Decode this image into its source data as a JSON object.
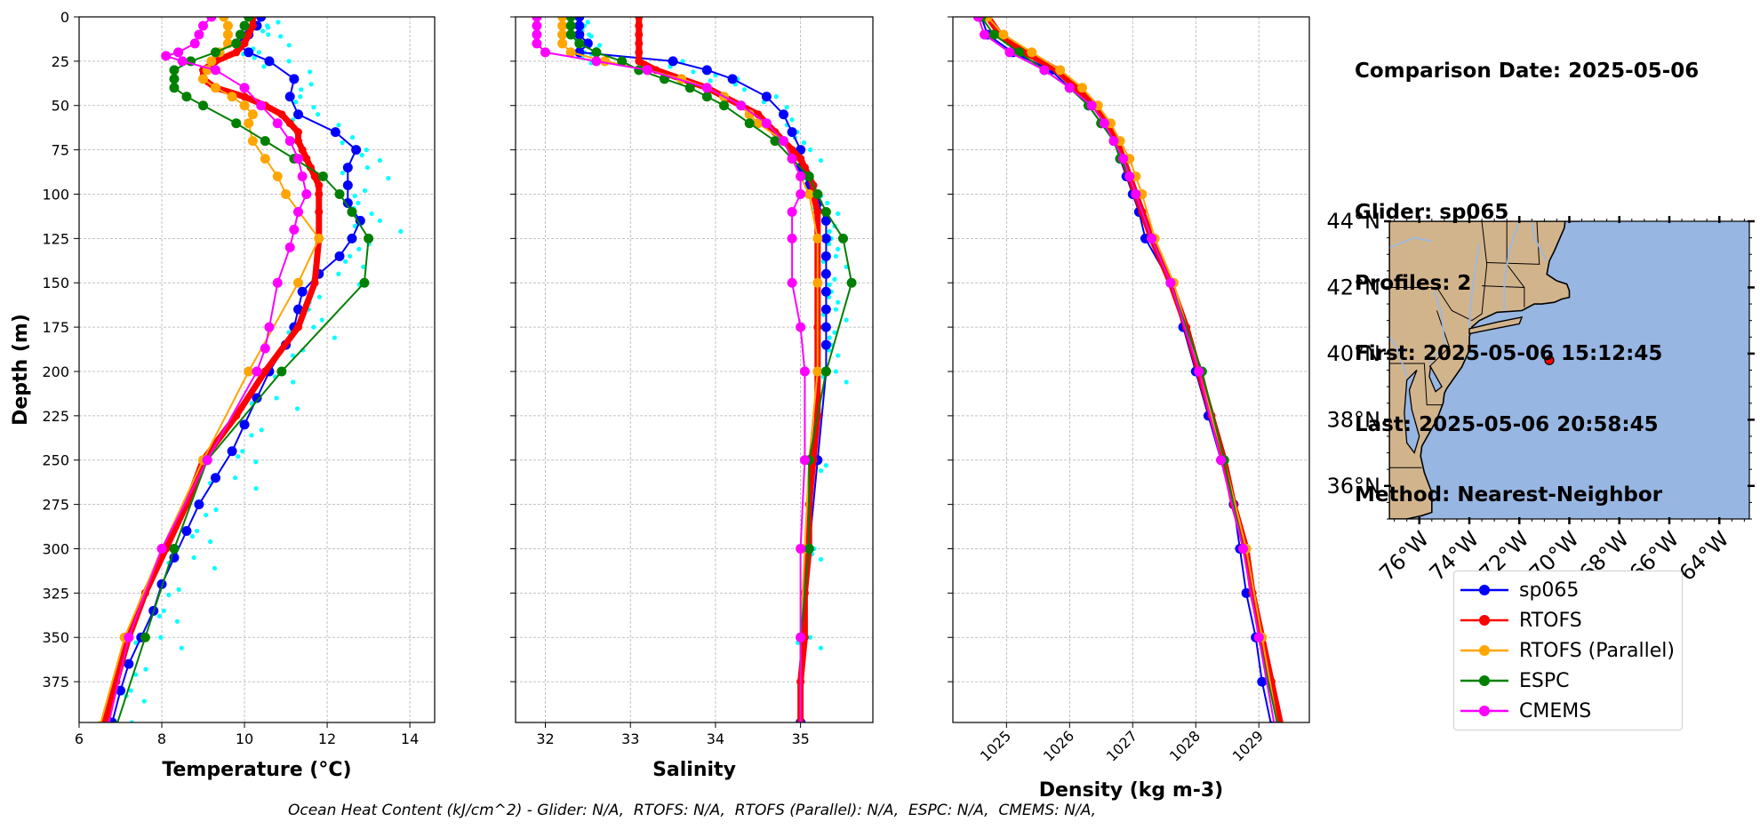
{
  "info": {
    "comparison_date": "Comparison Date: 2025-05-06",
    "glider": "Glider: sp065",
    "profiles": "Profiles: 2",
    "first": "First: 2025-05-06 15:12:45",
    "last": "Last: 2025-05-06 20:58:45",
    "method": "Method: Nearest-Neighbor"
  },
  "footnote": "Ocean Heat Content (kJ/cm^2) - Glider: N/A,  RTOFS: N/A,  RTOFS (Parallel): N/A,  ESPC: N/A,  CMEMS: N/A,",
  "colors": {
    "sp065": "#0000ff",
    "RTOFS": "#ff0000",
    "RTOFS (Parallel)": "#ffa500",
    "ESPC": "#008000",
    "CMEMS": "#ff00ff",
    "raw": "#00ffff",
    "land": "#d2b48c",
    "ocean": "#98b6e2",
    "rivers": "#9fb9d9"
  },
  "legend": [
    "sp065",
    "RTOFS",
    "RTOFS (Parallel)",
    "ESPC",
    "CMEMS"
  ],
  "chart_data": [
    {
      "type": "line",
      "xlabel": "Temperature (°C)",
      "ylabel": "Depth (m)",
      "xlim": [
        6,
        14.6
      ],
      "ylim": [
        398,
        0
      ],
      "xticks": [
        6,
        8,
        10,
        12,
        14
      ],
      "yticks": [
        0,
        25,
        50,
        75,
        100,
        125,
        150,
        175,
        200,
        225,
        250,
        275,
        300,
        325,
        350,
        375
      ],
      "grid": true,
      "depths": [
        0,
        5,
        10,
        15,
        20,
        25,
        30,
        35,
        40,
        45,
        50,
        55,
        60,
        65,
        70,
        75,
        80,
        85,
        90,
        95,
        100,
        110,
        125,
        150,
        175,
        200,
        225,
        250,
        275,
        300,
        325,
        350,
        375,
        400
      ],
      "series": [
        {
          "name": "sp065",
          "depth": [
            0,
            5,
            10,
            15,
            20,
            25,
            35,
            45,
            55,
            65,
            75,
            85,
            95,
            105,
            115,
            125,
            135,
            145,
            155,
            165,
            175,
            185,
            200,
            215,
            230,
            245,
            260,
            275,
            290,
            305,
            320,
            335,
            350,
            365,
            380,
            398
          ],
          "values": [
            10.4,
            10.3,
            10.1,
            9.8,
            10.1,
            10.6,
            11.2,
            11.1,
            11.3,
            12.2,
            12.7,
            12.5,
            12.5,
            12.5,
            12.8,
            12.6,
            12.3,
            11.8,
            11.4,
            11.3,
            11.2,
            11.0,
            10.6,
            10.3,
            10.0,
            9.7,
            9.3,
            8.9,
            8.6,
            8.3,
            8.0,
            7.8,
            7.5,
            7.2,
            7.0,
            6.8
          ]
        },
        {
          "name": "RTOFS",
          "depth": [
            0,
            5,
            10,
            15,
            20,
            25,
            30,
            35,
            40,
            45,
            50,
            55,
            60,
            65,
            70,
            75,
            80,
            85,
            90,
            95,
            100,
            110,
            125,
            150,
            175,
            200,
            225,
            250,
            275,
            300,
            325,
            350,
            375,
            400
          ],
          "values": [
            10.2,
            10.2,
            10.1,
            10.0,
            9.8,
            9.3,
            9.0,
            9.0,
            9.3,
            10.0,
            10.5,
            10.9,
            11.1,
            11.3,
            11.3,
            11.4,
            11.5,
            11.6,
            11.7,
            11.8,
            11.8,
            11.8,
            11.8,
            11.7,
            11.3,
            10.5,
            9.8,
            9.0,
            8.6,
            8.1,
            7.6,
            7.2,
            6.9,
            6.6
          ]
        },
        {
          "name": "RTOFS (Parallel)",
          "depth": [
            0,
            5,
            10,
            15,
            20,
            25,
            30,
            35,
            40,
            45,
            50,
            55,
            60,
            70,
            80,
            90,
            100,
            125,
            150,
            200,
            250,
            300,
            350,
            400
          ],
          "values": [
            9.5,
            9.6,
            9.6,
            9.6,
            9.4,
            9.2,
            9.1,
            9.0,
            9.3,
            9.7,
            10.0,
            10.2,
            10.1,
            10.2,
            10.5,
            10.8,
            11.0,
            11.8,
            11.3,
            10.1,
            9.0,
            8.0,
            7.1,
            6.5
          ]
        },
        {
          "name": "ESPC",
          "depth": [
            0,
            5,
            10,
            15,
            20,
            25,
            30,
            35,
            40,
            45,
            50,
            60,
            70,
            80,
            90,
            100,
            110,
            125,
            150,
            200,
            250,
            300,
            350,
            400
          ],
          "values": [
            10.1,
            10.0,
            9.9,
            9.8,
            9.3,
            8.7,
            8.3,
            8.3,
            8.3,
            8.6,
            9.0,
            9.8,
            10.5,
            11.2,
            11.9,
            12.3,
            12.6,
            13.0,
            12.9,
            10.9,
            9.1,
            8.3,
            7.6,
            6.9
          ]
        },
        {
          "name": "CMEMS",
          "depth": [
            0,
            5,
            10,
            15,
            20,
            22,
            25,
            30,
            40,
            50,
            60,
            70,
            80,
            90,
            100,
            110,
            120,
            130,
            150,
            175,
            187,
            200,
            250,
            300,
            350,
            400
          ],
          "values": [
            9.2,
            9.0,
            8.9,
            8.8,
            8.4,
            8.1,
            8.5,
            9.3,
            10.0,
            10.4,
            10.8,
            11.1,
            11.3,
            11.4,
            11.5,
            11.3,
            11.2,
            11.1,
            10.8,
            10.6,
            10.5,
            10.3,
            9.1,
            8.0,
            7.2,
            6.7
          ]
        }
      ]
    },
    {
      "type": "line",
      "xlabel": "Salinity",
      "ylabel": "",
      "xlim": [
        31.65,
        35.85
      ],
      "ylim": [
        398,
        0
      ],
      "xticks": [
        32,
        33,
        34,
        35
      ],
      "grid": true,
      "series": [
        {
          "name": "sp065",
          "depth": [
            0,
            5,
            10,
            15,
            20,
            25,
            30,
            35,
            45,
            55,
            65,
            75,
            85,
            95,
            105,
            115,
            125,
            135,
            145,
            155,
            165,
            175,
            185,
            200,
            250,
            300,
            350,
            398
          ],
          "values": [
            32.4,
            32.4,
            32.4,
            32.5,
            32.4,
            33.5,
            33.9,
            34.2,
            34.6,
            34.8,
            34.9,
            35.0,
            35.0,
            35.1,
            35.2,
            35.3,
            35.3,
            35.3,
            35.3,
            35.3,
            35.3,
            35.3,
            35.3,
            35.3,
            35.2,
            35.1,
            35.0,
            35.0
          ]
        },
        {
          "name": "RTOFS",
          "depth": [
            0,
            5,
            10,
            15,
            20,
            25,
            30,
            35,
            40,
            45,
            50,
            55,
            60,
            65,
            70,
            75,
            80,
            85,
            90,
            95,
            100,
            110,
            125,
            150,
            175,
            200,
            225,
            250,
            275,
            300,
            325,
            350,
            375,
            400
          ],
          "values": [
            33.1,
            33.1,
            33.1,
            33.1,
            33.1,
            33.1,
            33.3,
            33.6,
            33.9,
            34.1,
            34.3,
            34.5,
            34.6,
            34.7,
            34.8,
            34.9,
            35.0,
            35.05,
            35.1,
            35.15,
            35.15,
            35.2,
            35.2,
            35.2,
            35.2,
            35.2,
            35.2,
            35.15,
            35.1,
            35.1,
            35.05,
            35.05,
            35.0,
            35.0
          ]
        },
        {
          "name": "RTOFS (Parallel)",
          "depth": [
            0,
            5,
            10,
            15,
            20,
            25,
            30,
            35,
            40,
            45,
            50,
            55,
            60,
            70,
            80,
            90,
            100,
            125,
            150,
            200,
            250,
            300,
            350,
            400
          ],
          "values": [
            32.2,
            32.2,
            32.2,
            32.2,
            32.3,
            32.7,
            33.2,
            33.6,
            33.9,
            34.1,
            34.3,
            34.4,
            34.5,
            34.8,
            34.9,
            35.0,
            35.1,
            35.2,
            35.2,
            35.2,
            35.1,
            35.05,
            35.0,
            35.0
          ]
        },
        {
          "name": "ESPC",
          "depth": [
            0,
            5,
            10,
            15,
            20,
            25,
            30,
            35,
            40,
            45,
            50,
            60,
            70,
            80,
            90,
            100,
            110,
            125,
            150,
            200,
            250,
            300,
            350,
            400
          ],
          "values": [
            32.3,
            32.3,
            32.3,
            32.4,
            32.6,
            32.9,
            33.1,
            33.4,
            33.7,
            33.9,
            34.1,
            34.4,
            34.7,
            34.9,
            35.1,
            35.2,
            35.3,
            35.5,
            35.6,
            35.3,
            35.1,
            35.1,
            35.0,
            35.0
          ]
        },
        {
          "name": "CMEMS",
          "depth": [
            0,
            5,
            10,
            15,
            20,
            25,
            30,
            40,
            50,
            60,
            70,
            80,
            90,
            100,
            110,
            125,
            150,
            175,
            200,
            250,
            300,
            350,
            400
          ],
          "values": [
            31.9,
            31.9,
            31.9,
            31.9,
            32.0,
            32.6,
            33.2,
            33.9,
            34.3,
            34.6,
            34.8,
            34.9,
            35.0,
            35.0,
            34.9,
            34.9,
            34.9,
            35.0,
            35.05,
            35.05,
            35.0,
            35.0,
            35.0
          ]
        }
      ]
    },
    {
      "type": "line",
      "xlabel": "Density (kg m-3)",
      "ylabel": "",
      "xlim": [
        1024.15,
        1029.8
      ],
      "ylim": [
        398,
        0
      ],
      "xticks": [
        1025,
        1026,
        1027,
        1028,
        1029
      ],
      "grid": true,
      "series": [
        {
          "name": "sp065",
          "depth": [
            0,
            10,
            20,
            30,
            40,
            50,
            60,
            70,
            80,
            90,
            100,
            110,
            125,
            150,
            175,
            200,
            225,
            250,
            275,
            300,
            325,
            350,
            375,
            400
          ],
          "values": [
            1024.6,
            1024.7,
            1025.1,
            1025.7,
            1026.0,
            1026.3,
            1026.5,
            1026.7,
            1026.8,
            1026.9,
            1027.0,
            1027.1,
            1027.2,
            1027.6,
            1027.8,
            1028.0,
            1028.2,
            1028.4,
            1028.6,
            1028.7,
            1028.8,
            1028.95,
            1029.05,
            1029.2
          ]
        },
        {
          "name": "RTOFS",
          "depth": [
            0,
            10,
            20,
            30,
            40,
            50,
            60,
            70,
            80,
            90,
            100,
            110,
            125,
            150,
            175,
            200,
            225,
            250,
            275,
            300,
            325,
            350,
            375,
            400
          ],
          "values": [
            1024.7,
            1024.9,
            1025.3,
            1025.8,
            1026.1,
            1026.4,
            1026.6,
            1026.75,
            1026.85,
            1026.95,
            1027.05,
            1027.15,
            1027.3,
            1027.6,
            1027.85,
            1028.05,
            1028.25,
            1028.45,
            1028.6,
            1028.8,
            1028.9,
            1029.05,
            1029.2,
            1029.35
          ]
        },
        {
          "name": "RTOFS (Parallel)",
          "depth": [
            0,
            10,
            20,
            30,
            40,
            50,
            60,
            70,
            80,
            90,
            100,
            125,
            150,
            200,
            250,
            300,
            350,
            400
          ],
          "values": [
            1024.7,
            1024.95,
            1025.4,
            1025.85,
            1026.2,
            1026.45,
            1026.65,
            1026.8,
            1026.95,
            1027.05,
            1027.15,
            1027.35,
            1027.65,
            1028.05,
            1028.45,
            1028.8,
            1029.05,
            1029.3
          ]
        },
        {
          "name": "ESPC",
          "depth": [
            0,
            10,
            20,
            30,
            40,
            50,
            60,
            70,
            80,
            90,
            100,
            125,
            150,
            200,
            250,
            300,
            350,
            400
          ],
          "values": [
            1024.6,
            1024.8,
            1025.2,
            1025.6,
            1026.0,
            1026.3,
            1026.5,
            1026.7,
            1026.8,
            1026.95,
            1027.05,
            1027.3,
            1027.6,
            1028.1,
            1028.45,
            1028.75,
            1029.0,
            1029.3
          ]
        },
        {
          "name": "CMEMS",
          "depth": [
            0,
            10,
            20,
            30,
            40,
            50,
            60,
            70,
            80,
            90,
            100,
            125,
            150,
            200,
            250,
            300,
            350,
            400
          ],
          "values": [
            1024.55,
            1024.65,
            1025.05,
            1025.6,
            1026.0,
            1026.35,
            1026.55,
            1026.7,
            1026.85,
            1026.95,
            1027.05,
            1027.3,
            1027.6,
            1028.05,
            1028.4,
            1028.75,
            1029.0,
            1029.25
          ]
        }
      ]
    }
  ],
  "map": {
    "lon_range": [
      -77.2,
      -62.8
    ],
    "lat_range": [
      35,
      44
    ],
    "lon_ticks": [
      "76°W",
      "74°W",
      "72°W",
      "70°W",
      "68°W",
      "66°W",
      "64°W"
    ],
    "lat_ticks": [
      "44°N",
      "42°N",
      "40°N",
      "38°N",
      "36°N"
    ],
    "glider_position": {
      "lon": -70.8,
      "lat": 39.8
    }
  }
}
